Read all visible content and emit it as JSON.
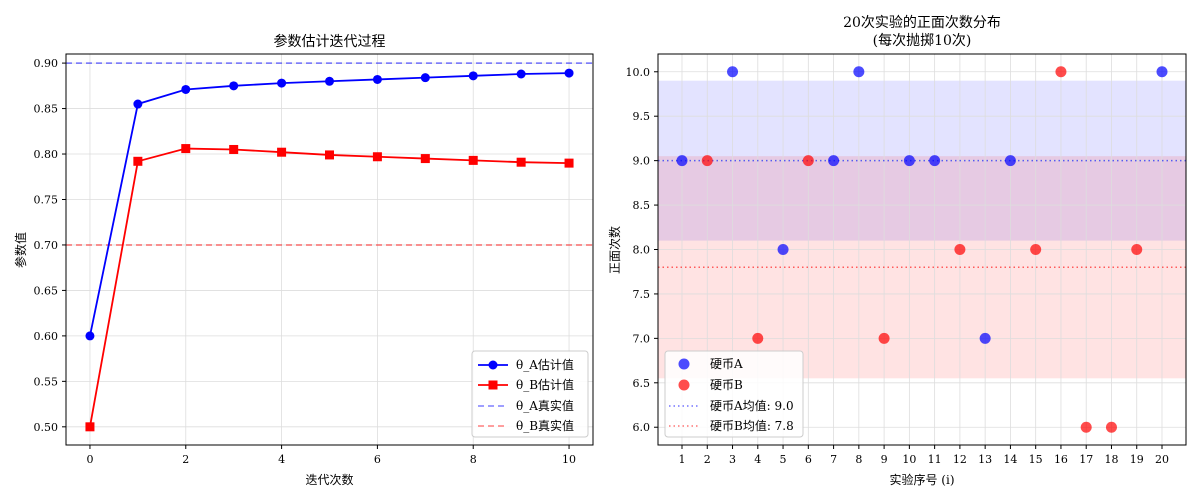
{
  "chart_data": [
    {
      "type": "line",
      "title": "参数估计迭代过程",
      "xlabel": "迭代次数",
      "ylabel": "参数值",
      "xlim": [
        -0.5,
        10.5
      ],
      "ylim": [
        0.48,
        0.91
      ],
      "xticks": [
        0,
        2,
        4,
        6,
        8,
        10
      ],
      "yticks": [
        0.5,
        0.55,
        0.6,
        0.65,
        0.7,
        0.75,
        0.8,
        0.85,
        0.9
      ],
      "ytick_labels": [
        "0.50",
        "0.55",
        "0.60",
        "0.65",
        "0.70",
        "0.75",
        "0.80",
        "0.85",
        "0.90"
      ],
      "grid": true,
      "legend_position": "bottom-right",
      "x": [
        0,
        1,
        2,
        3,
        4,
        5,
        6,
        7,
        8,
        9,
        10
      ],
      "series": [
        {
          "name": "θ_A估计值",
          "color": "#0000ff",
          "marker": "circle",
          "values": [
            0.6,
            0.855,
            0.871,
            0.875,
            0.878,
            0.88,
            0.882,
            0.884,
            0.886,
            0.888,
            0.889
          ]
        },
        {
          "name": "θ_B估计值",
          "color": "#ff0000",
          "marker": "square",
          "values": [
            0.5,
            0.792,
            0.806,
            0.805,
            0.802,
            0.799,
            0.797,
            0.795,
            0.793,
            0.791,
            0.79
          ]
        }
      ],
      "reference_lines": [
        {
          "name": "θ_A真实值",
          "value": 0.9,
          "color": "#0000ff"
        },
        {
          "name": "θ_B真实值",
          "value": 0.7,
          "color": "#ff0000"
        }
      ]
    },
    {
      "type": "scatter",
      "title": "20次实验的正面次数分布",
      "subtitle": "(每次抛掷10次)",
      "xlabel": "实验序号 (i)",
      "ylabel": "正面次数",
      "xlim": [
        0.05,
        20.95
      ],
      "ylim": [
        5.8,
        10.2
      ],
      "xticks": [
        1,
        2,
        3,
        4,
        5,
        6,
        7,
        8,
        9,
        10,
        11,
        12,
        13,
        14,
        15,
        16,
        17,
        18,
        19,
        20
      ],
      "yticks": [
        6.0,
        6.5,
        7.0,
        7.5,
        8.0,
        8.5,
        9.0,
        9.5,
        10.0
      ],
      "ytick_labels": [
        "6.0",
        "6.5",
        "7.0",
        "7.5",
        "8.0",
        "8.5",
        "9.0",
        "9.5",
        "10.0"
      ],
      "grid": true,
      "legend_position": "bottom-left",
      "series": [
        {
          "name": "硬币A",
          "color": "#0000ff",
          "x": [
            1,
            3,
            5,
            7,
            8,
            10,
            11,
            13,
            14,
            20
          ],
          "values": [
            9,
            10,
            8,
            9,
            10,
            9,
            9,
            7,
            9,
            10
          ]
        },
        {
          "name": "硬币B",
          "color": "#ff0000",
          "x": [
            2,
            4,
            6,
            9,
            12,
            15,
            16,
            17,
            18,
            19
          ],
          "values": [
            9,
            7,
            9,
            7,
            8,
            8,
            10,
            6,
            6,
            8
          ]
        }
      ],
      "mean_lines": [
        {
          "name": "硬币A均值: 9.0",
          "value": 9.0,
          "band": [
            8.1,
            9.9
          ],
          "color": "#0000ff"
        },
        {
          "name": "硬币B均值: 7.8",
          "value": 7.8,
          "band": [
            6.55,
            9.05
          ],
          "color": "#ff0000"
        }
      ]
    }
  ]
}
